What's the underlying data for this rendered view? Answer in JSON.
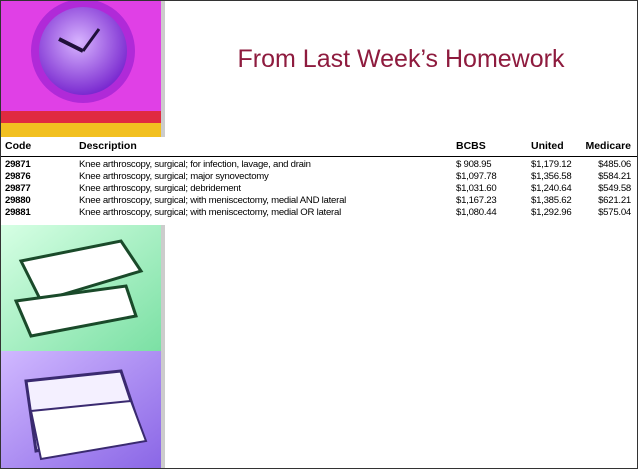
{
  "title": "From Last Week’s Homework",
  "table": {
    "header": [
      "Code",
      "Description",
      "BCBS",
      "United",
      "Medicare"
    ],
    "rows": [
      [
        "29871",
        "Knee arthroscopy, surgical; for infection, lavage, and drain",
        "$ 908.95",
        "$1,179.12",
        "$485.06"
      ],
      [
        "29876",
        "Knee arthroscopy, surgical; major synovectomy",
        "$1,097.78",
        "$1,356.58",
        "$584.21"
      ],
      [
        "29877",
        "Knee arthroscopy, surgical; debridement",
        "$1,031.60",
        "$1,240.64",
        "$549.58"
      ],
      [
        "29880",
        "Knee arthroscopy, surgical; with meniscectomy, medial AND lateral",
        "$1,167.23",
        "$1,385.62",
        "$621.21"
      ],
      [
        "29881",
        "Knee arthroscopy, surgical; with meniscectomy, medial OR lateral",
        "$1,080.44",
        "$1,292.96",
        "$575.04"
      ]
    ]
  }
}
